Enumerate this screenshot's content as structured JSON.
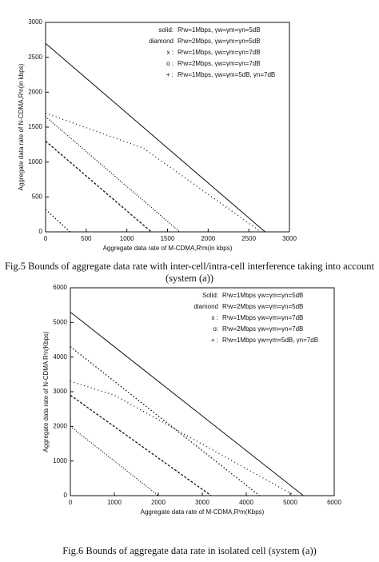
{
  "chart_data": [
    {
      "type": "line",
      "xlabel": "Aggregate data rate of M-CDMA,Rᵗm(in kbps)",
      "ylabel": "Aggregate data rate of N-CDMA,Rᵗn(in kbps)",
      "caption": "Fig.5  Bounds of aggregate data rate with inter-cell/intra-cell interference taking into account (system (a))",
      "xlim": [
        0,
        3000
      ],
      "ylim": [
        0,
        3000
      ],
      "xticks": [
        0,
        500,
        1000,
        1500,
        2000,
        2500,
        3000
      ],
      "yticks": [
        0,
        500,
        1000,
        1500,
        2000,
        2500,
        3000
      ],
      "series": [
        {
          "name": "solid:",
          "label": "Rᵗw=1Mbps, γw=γm=γn=5dB",
          "color": "#111111",
          "x": [
            0,
            2700
          ],
          "values": [
            2700,
            0
          ]
        },
        {
          "name": "diamond",
          "label": "Rᵗw=2Mbps, γw=γm=γn=5dB",
          "color": "#111111",
          "x": [
            0,
            300
          ],
          "values": [
            320,
            0
          ]
        },
        {
          "name": "x :",
          "label": "Rᵗw=1Mbps, γw=γm=γn=7dB",
          "color": "#111111",
          "x": [
            0,
            1300
          ],
          "values": [
            1300,
            0
          ]
        },
        {
          "name": "o :",
          "label": "Rᵗw=2Mbps, γw=γm=γn=7dB",
          "color": "#111111",
          "x": [
            0,
            1650
          ],
          "values": [
            1650,
            0
          ]
        },
        {
          "name": "+ :",
          "label": "Rᵗw=1Mbps, γw=γm=5dB, γn=7dB",
          "color": "#111111",
          "x": [
            0,
            1200,
            2650
          ],
          "values": [
            1700,
            1200,
            0
          ]
        }
      ]
    },
    {
      "type": "line",
      "xlabel": "Aggregate data rate of M-CDMA,Rᵗm(Kbps)",
      "ylabel": "Aggregate data rate of N-CDMA Rᵗn(Kbps)",
      "caption": "Fig.6  Bounds of aggregate data rate in isolated cell (system (a))",
      "xlim": [
        0,
        6000
      ],
      "ylim": [
        0,
        6000
      ],
      "xticks": [
        0,
        1000,
        2000,
        3000,
        4000,
        5000,
        6000
      ],
      "yticks": [
        0,
        1000,
        2000,
        3000,
        4000,
        5000,
        6000
      ],
      "series": [
        {
          "name": "Solid:",
          "label": "Rᵗw=1Mbps γw=γm=γn=5dB",
          "color": "#111111",
          "x": [
            0,
            5300
          ],
          "values": [
            5300,
            0
          ]
        },
        {
          "name": "diamond",
          "label": "Rᵗw=2Mbps γw=γm=γn=5dB",
          "color": "#111111",
          "x": [
            0,
            4300
          ],
          "values": [
            4300,
            0
          ]
        },
        {
          "name": "x :",
          "label": "Rᵗw=1Mbps γw=γm=γn=7dB",
          "color": "#111111",
          "x": [
            0,
            3200
          ],
          "values": [
            2900,
            0
          ]
        },
        {
          "name": "o:",
          "label": "Rᵗw=2Mbps γw=γm=γn=7dB",
          "color": "#111111",
          "x": [
            0,
            2000
          ],
          "values": [
            2000,
            0
          ]
        },
        {
          "name": "+ :",
          "label": "Rᵗw=1Mbps γw=γm=5dB, γn=7dB",
          "color": "#111111",
          "x": [
            0,
            1000,
            5100
          ],
          "values": [
            3300,
            2900,
            0
          ]
        }
      ]
    }
  ]
}
